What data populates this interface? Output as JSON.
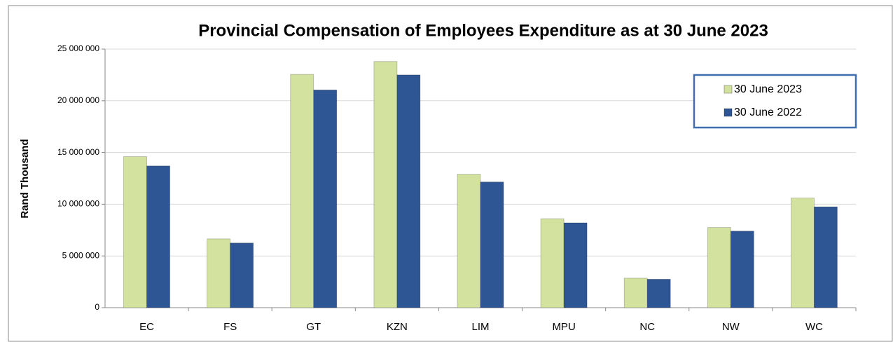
{
  "chart_data": {
    "type": "bar",
    "title": "Provincial Compensation of Employees Expenditure as at 30 June  2023",
    "y_label": "Rand Thousand",
    "categories": [
      "EC",
      "FS",
      "GT",
      "KZN",
      "LIM",
      "MPU",
      "NC",
      "NW",
      "WC"
    ],
    "series": [
      {
        "name": "30 June 2023",
        "color": "#d3e29e",
        "values": [
          14600000,
          6650000,
          22550000,
          23800000,
          12900000,
          8600000,
          2850000,
          7750000,
          10600000
        ]
      },
      {
        "name": "30 June 2022",
        "color": "#2e5694",
        "values": [
          13700000,
          6250000,
          21050000,
          22500000,
          12150000,
          8200000,
          2750000,
          7400000,
          9750000
        ]
      }
    ],
    "ylim": [
      0,
      25000000
    ],
    "yticks": [
      0,
      {
        "value": 5000000,
        "label": "5 000 000"
      },
      {
        "value": 10000000,
        "label": "10 000 000"
      },
      {
        "value": 15000000,
        "label": "15 000 000"
      },
      {
        "value": 20000000,
        "label": "20 000 000"
      },
      {
        "value": 25000000,
        "label": "25 000 000"
      }
    ],
    "grid": true,
    "legend": "upper right"
  }
}
